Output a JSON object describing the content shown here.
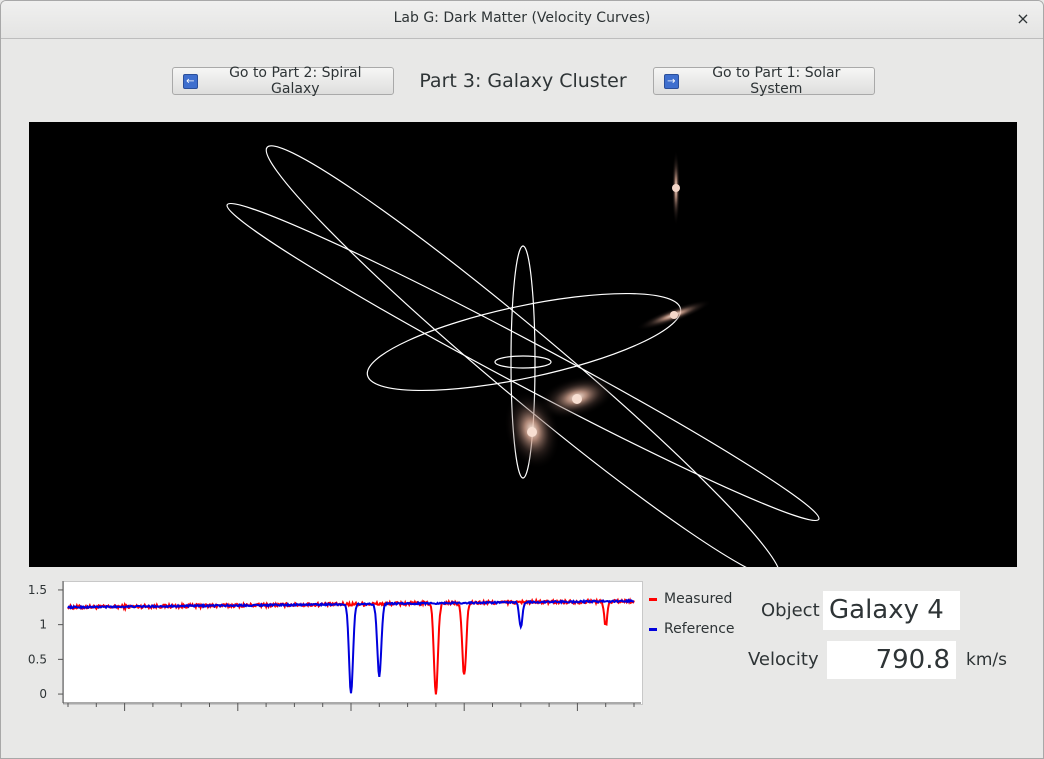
{
  "window": {
    "title": "Lab G: Dark Matter (Velocity Curves)",
    "close_icon": "×"
  },
  "nav": {
    "prev_label": "Go to Part 2: Spiral Galaxy",
    "next_label": "Go to Part 1: Solar System",
    "prev_icon": "arrow-left-icon",
    "next_icon": "arrow-right-icon",
    "current_part": "Part 3: Galaxy Cluster"
  },
  "spectrum": {
    "legend": [
      {
        "name": "Measured",
        "color": "#ff0000"
      },
      {
        "name": "Reference",
        "color": "#0000dd"
      }
    ]
  },
  "readout": {
    "object_label": "Object",
    "object_value": "Galaxy 4",
    "velocity_label": "Velocity",
    "velocity_value": "790.8",
    "velocity_unit": "km/s"
  },
  "chart_data": {
    "type": "line",
    "xlim": [
      -5,
      5
    ],
    "ylim": [
      -0.1,
      1.6
    ],
    "xticks": [
      -4,
      -2,
      0,
      2,
      4
    ],
    "yticks": [
      0,
      0.5,
      1,
      1.5
    ],
    "yticklabels": [
      "0",
      "0.5",
      "1",
      "1.5"
    ],
    "baseline": {
      "start": 1.25,
      "end": 1.34
    },
    "series": [
      {
        "name": "Measured",
        "color": "#ff0000",
        "noise": 0.025,
        "lines": [
          {
            "center": 1.5,
            "depth": 1.3,
            "width": 0.05
          },
          {
            "center": 2.0,
            "depth": 1.05,
            "width": 0.05
          },
          {
            "center": 4.5,
            "depth": 0.35,
            "width": 0.04
          }
        ]
      },
      {
        "name": "Reference",
        "color": "#0000dd",
        "noise": 0.012,
        "lines": [
          {
            "center": 0.0,
            "depth": 1.28,
            "width": 0.05
          },
          {
            "center": 0.5,
            "depth": 1.05,
            "width": 0.05
          },
          {
            "center": 3.0,
            "depth": 0.36,
            "width": 0.04
          }
        ]
      }
    ]
  }
}
